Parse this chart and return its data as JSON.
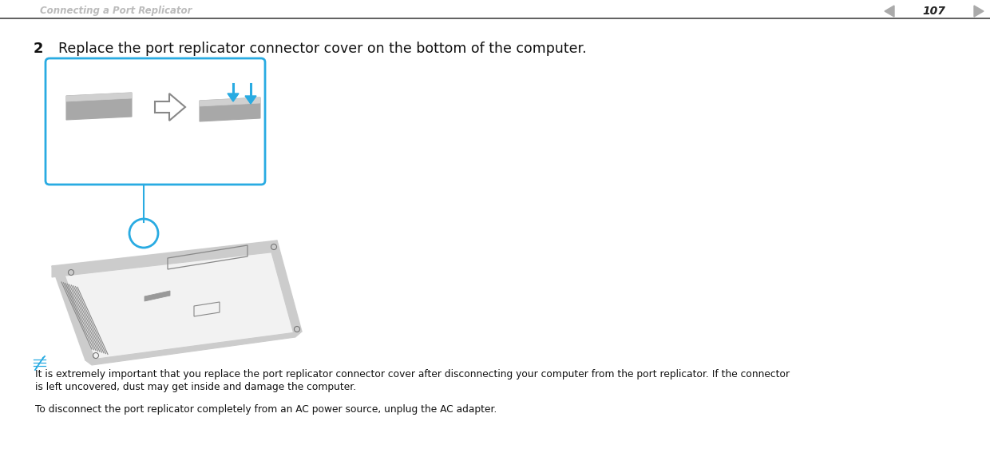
{
  "bg_color": "#ffffff",
  "header_text": "Connecting a Port Replicator",
  "header_color": "#bbbbbb",
  "page_number": "107",
  "step_number": "2",
  "step_text": "Replace the port replicator connector cover on the bottom of the computer.",
  "note_line1": "It is extremely important that you replace the port replicator connector cover after disconnecting your computer from the port replicator. If the connector",
  "note_line2": "is left uncovered, dust may get inside and damage the computer.",
  "note_line3": "To disconnect the port replicator completely from an AC power source, unplug the AC adapter.",
  "box_color": "#29abe2",
  "arrow_color": "#29abe2",
  "note_icon_color": "#29abe2",
  "cover_color_main": "#a8a8a8",
  "cover_color_top": "#d0d0d0",
  "laptop_main": "#f2f2f2",
  "laptop_edge": "#444444",
  "laptop_side": "#cccccc"
}
